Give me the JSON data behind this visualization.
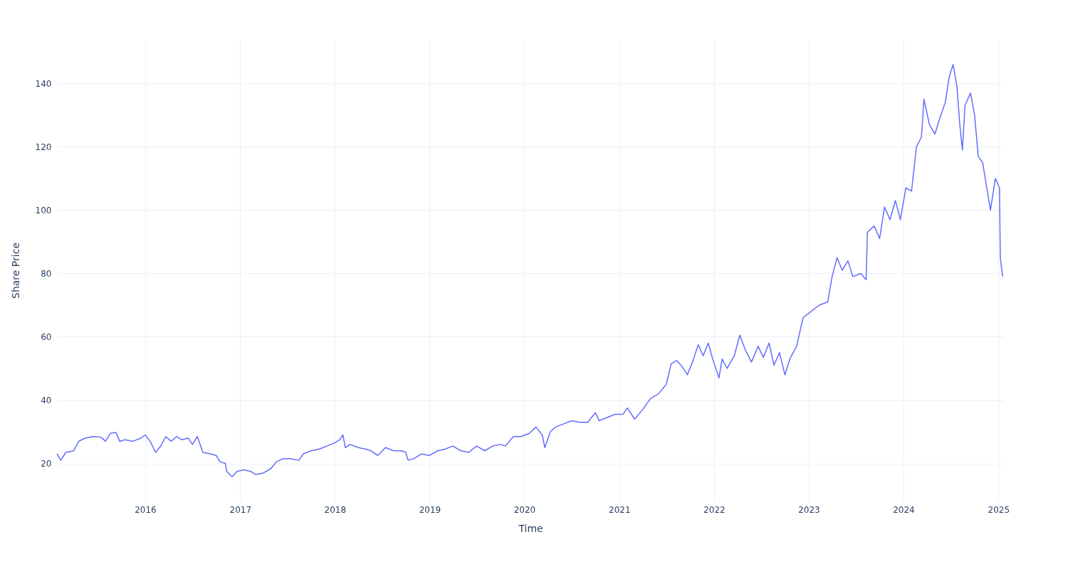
{
  "chart_data": {
    "type": "line",
    "xlabel": "Time",
    "ylabel": "Share Price",
    "grid": true,
    "xlim": [
      "2015-01-26",
      "2025-01-22"
    ],
    "xticks": [
      "2016",
      "2017",
      "2018",
      "2019",
      "2020",
      "2021",
      "2022",
      "2023",
      "2024",
      "2025"
    ],
    "ylim": [
      8,
      154
    ],
    "yticks": [
      20,
      40,
      60,
      80,
      100,
      120,
      140
    ],
    "series": [
      {
        "color": "#636efa",
        "x": [
          "2015-01-26",
          "2015-02-10",
          "2015-03-01",
          "2015-04-01",
          "2015-04-20",
          "2015-05-15",
          "2015-06-15",
          "2015-07-15",
          "2015-08-01",
          "2015-08-20",
          "2015-09-10",
          "2015-09-25",
          "2015-10-15",
          "2015-11-15",
          "2015-12-15",
          "2016-01-01",
          "2016-01-20",
          "2016-02-10",
          "2016-03-01",
          "2016-03-20",
          "2016-04-10",
          "2016-05-01",
          "2016-05-20",
          "2016-06-15",
          "2016-07-01",
          "2016-07-20",
          "2016-08-10",
          "2016-09-10",
          "2016-10-01",
          "2016-10-15",
          "2016-11-05",
          "2016-11-10",
          "2016-12-01",
          "2016-12-20",
          "2017-01-15",
          "2017-02-10",
          "2017-03-01",
          "2017-04-01",
          "2017-05-01",
          "2017-05-20",
          "2017-06-15",
          "2017-07-15",
          "2017-08-15",
          "2017-09-01",
          "2017-10-01",
          "2017-11-01",
          "2017-12-01",
          "2017-12-31",
          "2018-01-20",
          "2018-02-01",
          "2018-02-10",
          "2018-03-01",
          "2018-04-01",
          "2018-05-01",
          "2018-05-20",
          "2018-06-15",
          "2018-07-15",
          "2018-08-15",
          "2018-09-15",
          "2018-10-01",
          "2018-10-10",
          "2018-11-01",
          "2018-12-01",
          "2018-12-31",
          "2019-02-01",
          "2019-03-01",
          "2019-04-01",
          "2019-05-01",
          "2019-06-01",
          "2019-07-01",
          "2019-08-01",
          "2019-09-01",
          "2019-10-01",
          "2019-10-20",
          "2019-11-20",
          "2019-12-20",
          "2020-01-20",
          "2020-02-15",
          "2020-03-10",
          "2020-03-20",
          "2020-04-10",
          "2020-05-01",
          "2020-06-01",
          "2020-07-01",
          "2020-08-01",
          "2020-09-01",
          "2020-10-01",
          "2020-10-15",
          "2020-11-15",
          "2020-12-15",
          "2021-01-15",
          "2021-02-01",
          "2021-03-01",
          "2021-04-01",
          "2021-05-01",
          "2021-06-01",
          "2021-07-01",
          "2021-07-20",
          "2021-08-10",
          "2021-09-01",
          "2021-09-20",
          "2021-10-10",
          "2021-11-01",
          "2021-11-20",
          "2021-12-10",
          "2021-12-25",
          "2022-01-20",
          "2022-02-01",
          "2022-02-20",
          "2022-03-20",
          "2022-04-10",
          "2022-05-01",
          "2022-05-25",
          "2022-06-20",
          "2022-07-10",
          "2022-08-01",
          "2022-08-20",
          "2022-09-10",
          "2022-10-01",
          "2022-10-20",
          "2022-11-15",
          "2022-12-10",
          "2023-01-10",
          "2023-02-10",
          "2023-03-15",
          "2023-04-01",
          "2023-04-20",
          "2023-05-10",
          "2023-06-01",
          "2023-06-20",
          "2023-07-20",
          "2023-08-10",
          "2023-08-15",
          "2023-09-10",
          "2023-10-01",
          "2023-10-20",
          "2023-11-10",
          "2023-12-01",
          "2023-12-20",
          "2024-01-10",
          "2024-02-01",
          "2024-02-20",
          "2024-03-10",
          "2024-03-20",
          "2024-04-10",
          "2024-05-01",
          "2024-05-20",
          "2024-06-10",
          "2024-06-25",
          "2024-07-10",
          "2024-07-25",
          "2024-08-05",
          "2024-08-15",
          "2024-08-25",
          "2024-09-15",
          "2024-10-01",
          "2024-10-15",
          "2024-11-01",
          "2024-11-15",
          "2024-12-01",
          "2024-12-20",
          "2025-01-05",
          "2025-01-08",
          "2025-01-17"
        ],
        "values": [
          23,
          21,
          23.5,
          24,
          27,
          28,
          28.5,
          28.3,
          27,
          29.5,
          29.8,
          27,
          27.5,
          27,
          28,
          29,
          27,
          23.5,
          25.5,
          28.5,
          27,
          28.5,
          27.5,
          28,
          26,
          28.5,
          23.5,
          23,
          22.5,
          20.5,
          20,
          17.5,
          15.8,
          17.5,
          18,
          17.5,
          16.5,
          17,
          18.5,
          20.5,
          21.5,
          21.5,
          21,
          23,
          24,
          24.5,
          25.5,
          26.5,
          27.5,
          29,
          25,
          26,
          25,
          24.5,
          24,
          22.5,
          25,
          24,
          24,
          23.5,
          21,
          21.5,
          23,
          22.5,
          24,
          24.5,
          25.5,
          24,
          23.5,
          25.5,
          24,
          25.5,
          26,
          25.5,
          28.5,
          28.5,
          29.5,
          31.5,
          29,
          25,
          30,
          31.5,
          32.5,
          33.5,
          33,
          33,
          36,
          33.5,
          34.5,
          35.5,
          35.5,
          37.5,
          34,
          37,
          40.5,
          42,
          45,
          51.5,
          52.5,
          50.5,
          48,
          52,
          57.5,
          54,
          58,
          53.5,
          47,
          53,
          50,
          54,
          60.5,
          56,
          52,
          57,
          53.5,
          58,
          51,
          55,
          48,
          53,
          57,
          66,
          68,
          70,
          71,
          79,
          85,
          81,
          84,
          79,
          80,
          78,
          93,
          95,
          91,
          101,
          97,
          103,
          97,
          107,
          106,
          120,
          123,
          135,
          127,
          124,
          129,
          134,
          142,
          146,
          139,
          127,
          119,
          133,
          137,
          130,
          117,
          115,
          108,
          100,
          110,
          107,
          85,
          79
        ]
      }
    ]
  }
}
